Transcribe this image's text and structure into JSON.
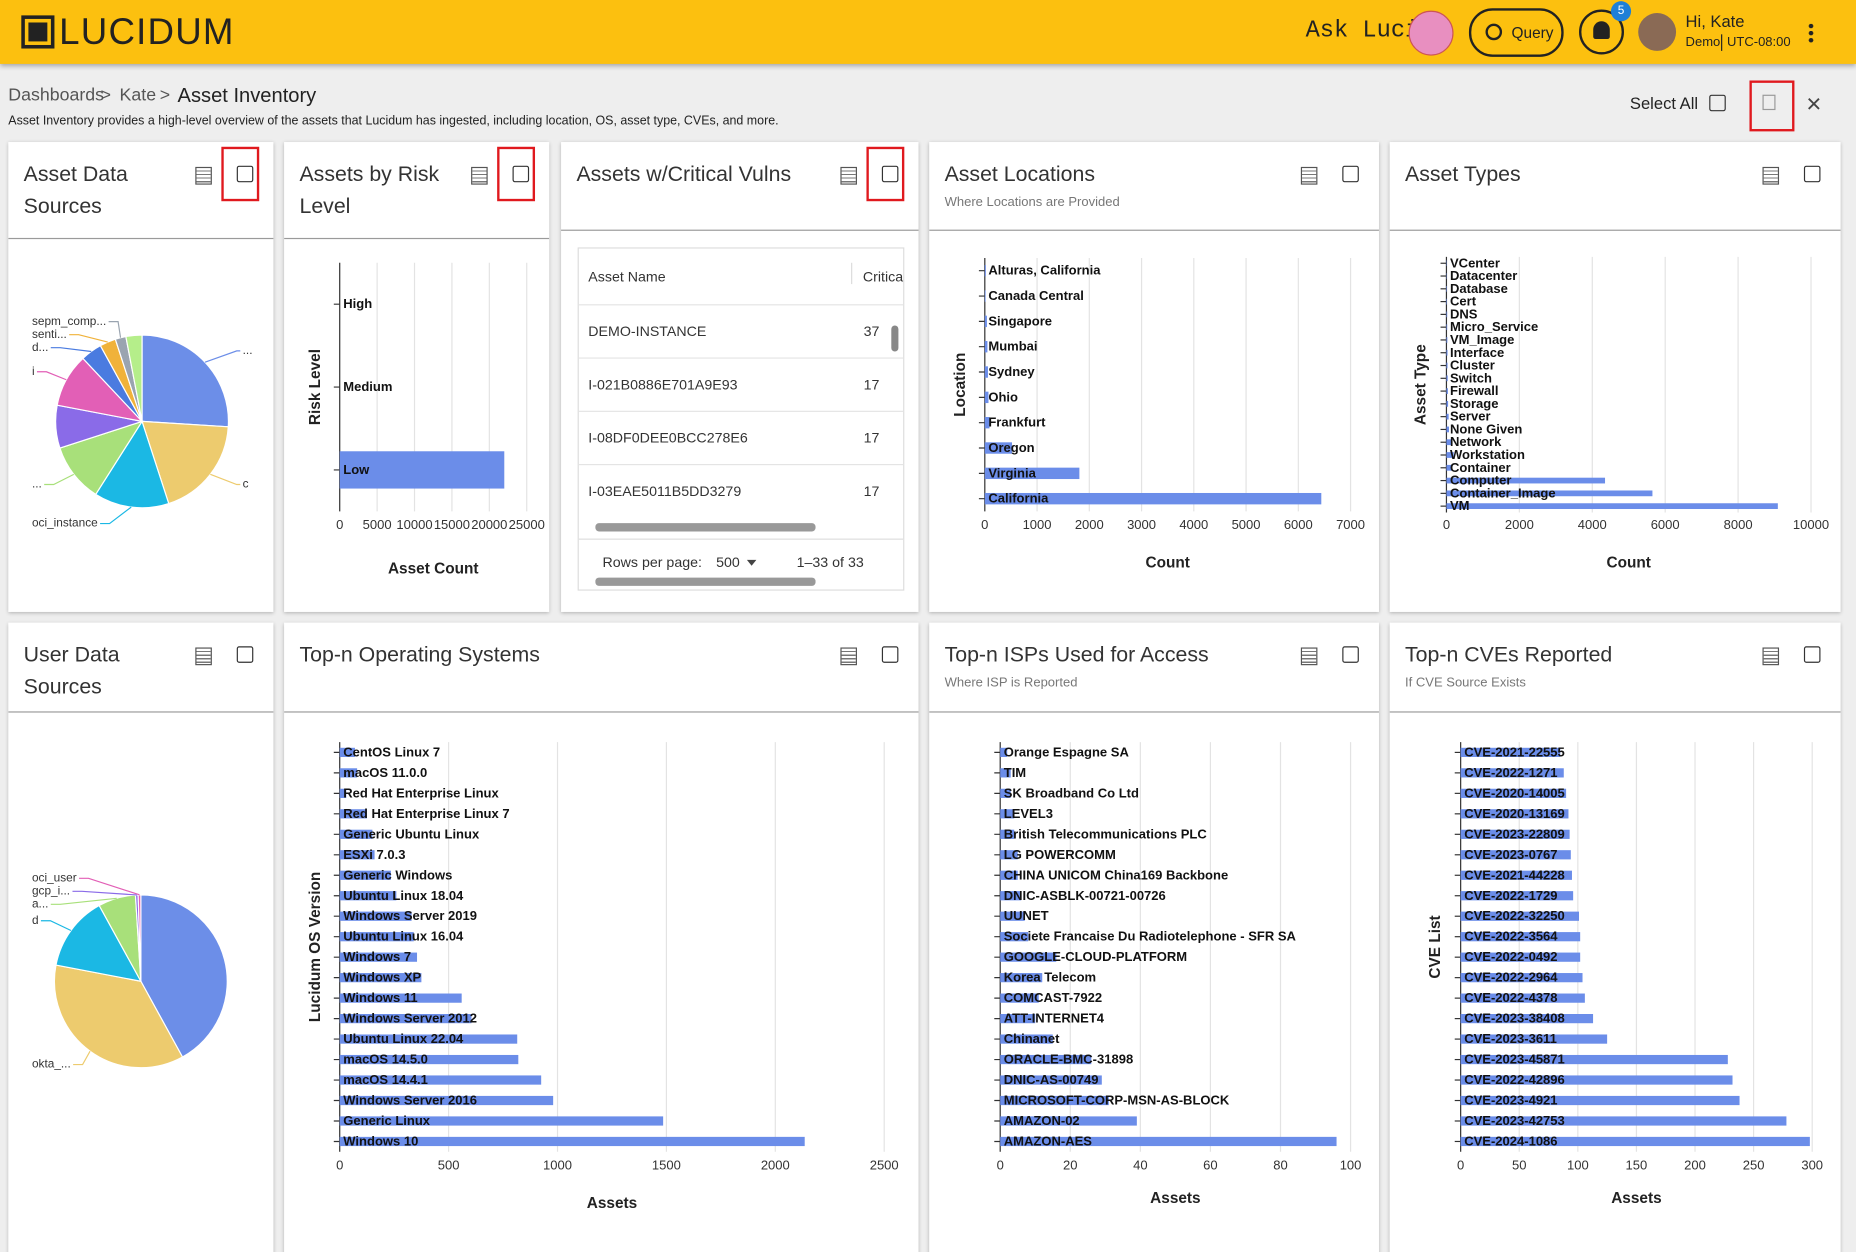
{
  "header": {
    "logo": "LUCIDUM",
    "ask": "Ask Luci:",
    "query": "Query",
    "notifications": 5,
    "greeting": "Hi, Kate",
    "org": "Demo",
    "timezone": "UTC-08:00"
  },
  "breadcrumb": {
    "items": [
      "Dashboards",
      "Kate",
      "Asset Inventory"
    ],
    "separator": ">"
  },
  "description": "Asset Inventory provides a high-level overview of the assets that Lucidum has ingested, including location, OS, asset type, CVEs, and more.",
  "select_all": "Select All",
  "table": {
    "title": "Assets w/Critical Vulns",
    "columns": [
      "Asset Name",
      "Critica"
    ],
    "rows": [
      [
        "DEMO-INSTANCE",
        37
      ],
      [
        "I-021B0886E701A9E93",
        17
      ],
      [
        "I-08DF0DEE0BCC278E6",
        17
      ],
      [
        "I-03EAE5011B5DD3279",
        17
      ]
    ],
    "rows_per_page_label": "Rows per page:",
    "rows_per_page": 500,
    "range": "1–33 of 33"
  },
  "chart_data": [
    {
      "type": "pie",
      "title": "Asset Data Sources",
      "categories": [
        "...",
        "c",
        "oci_instance",
        "...",
        null,
        "i",
        "d...",
        "senti...",
        "sepm_comp...",
        null
      ],
      "values": [
        26,
        19,
        14,
        11,
        8,
        10,
        4,
        3,
        2,
        3
      ],
      "colors": [
        "#6c8ee8",
        "#edcb6e",
        "#1bb8e4",
        "#a8e07a",
        "#8a6be8",
        "#e25fb6",
        "#4a7be0",
        "#f0b23a",
        "#9aa4b0",
        "#b5ee8a"
      ]
    },
    {
      "type": "bar",
      "title": "Assets by Risk Level",
      "xlabel": "Asset Count",
      "ylabel": "Risk Level",
      "categories": [
        "High",
        "Medium",
        "Low"
      ],
      "values": [
        0,
        0,
        22000
      ],
      "color": "#6b8de9",
      "xlim": [
        0,
        25000
      ],
      "xticks": [
        0,
        5000,
        10000,
        15000,
        20000,
        25000
      ],
      "grid": true
    },
    {
      "type": "bar",
      "title": "Asset Locations",
      "subtitle": "Where Locations are Provided",
      "xlabel": "Count",
      "ylabel": "Location",
      "categories": [
        "Alturas, California",
        "Canada Central",
        "Singapore",
        "Mumbai",
        "Sydney",
        "Ohio",
        "Frankfurt",
        "Oregon",
        "Virginia",
        "California"
      ],
      "values": [
        20,
        15,
        40,
        50,
        60,
        70,
        90,
        520,
        1810,
        6440
      ],
      "color": "#6b8de9",
      "xlim": [
        0,
        7000
      ],
      "xticks": [
        0,
        1000,
        2000,
        3000,
        4000,
        5000,
        6000,
        7000
      ],
      "grid": true
    },
    {
      "type": "bar",
      "title": "Asset Types",
      "xlabel": "Count",
      "ylabel": "Asset Type",
      "categories": [
        "VCenter",
        "Datacenter",
        "Database",
        "Cert",
        "DNS",
        "Micro_Service",
        "VM_Image",
        "Interface",
        "Cluster",
        "Switch",
        "Firewall",
        "Storage",
        "Server",
        "None Given",
        "Network",
        "Workstation",
        "Container",
        "Computer",
        "Container_Image",
        "VM"
      ],
      "values": [
        10,
        10,
        15,
        15,
        20,
        20,
        25,
        30,
        30,
        35,
        40,
        45,
        60,
        70,
        130,
        200,
        150,
        4350,
        5650,
        9090
      ],
      "color": "#6b8de9",
      "xlim": [
        0,
        10000
      ],
      "xticks": [
        0,
        2000,
        4000,
        6000,
        8000,
        10000
      ],
      "grid": true
    },
    {
      "type": "pie",
      "title": "User Data Sources",
      "categories": [
        null,
        "okta_...",
        "d",
        "a...",
        "gcp_i...",
        "oci_user"
      ],
      "values": [
        42,
        36,
        14,
        7,
        0.5,
        0.5
      ],
      "colors": [
        "#6c8ee8",
        "#edcb6e",
        "#1bb8e4",
        "#a8e07a",
        "#8a6be8",
        "#e25fb6"
      ]
    },
    {
      "type": "bar",
      "title": "Top-n Operating Systems",
      "xlabel": "Assets",
      "ylabel": "Lucidum OS Version",
      "categories": [
        "CentOS Linux 7",
        "macOS 11.0.0",
        "Red Hat Enterprise Linux",
        "Red Hat Enterprise Linux 7",
        "Generic Ubuntu Linux",
        "ESXi 7.0.3",
        "Generic Windows",
        "Ubuntu Linux 18.04",
        "Windows Server 2019",
        "Ubuntu Linux 16.04",
        "Windows 7",
        "Windows XP",
        "Windows 11",
        "Windows Server 2012",
        "Ubuntu Linux 22.04",
        "macOS 14.5.0",
        "macOS 14.4.1",
        "Windows Server 2016",
        "Generic Linux",
        "Windows 10"
      ],
      "values": [
        70,
        80,
        30,
        125,
        150,
        160,
        235,
        260,
        330,
        340,
        355,
        375,
        560,
        605,
        815,
        820,
        925,
        980,
        1485,
        2135
      ],
      "color": "#6b8de9",
      "xlim": [
        0,
        2500
      ],
      "xticks": [
        0,
        500,
        1000,
        1500,
        2000,
        2500
      ],
      "grid": true
    },
    {
      "type": "bar",
      "title": "Top-n ISPs Used for Access",
      "subtitle": "Where ISP is Reported",
      "xlabel": "Assets",
      "categories": [
        "Orange Espagne SA",
        "TIM",
        "SK Broadband Co Ltd",
        "LEVEL3",
        "British Telecommunications PLC",
        "LG POWERCOMM",
        "CHINA UNICOM China169 Backbone",
        "DNIC-ASBLK-00721-00726",
        "UUNET",
        "Societe Francaise Du Radiotelephone - SFR SA",
        "GOOGLE-CLOUD-PLATFORM",
        "Korea Telecom",
        "COMCAST-7922",
        "ATT-INTERNET4",
        "Chinanet",
        "ORACLE-BMC-31898",
        "DNIC-AS-00749",
        "MICROSOFT-CORP-MSN-AS-BLOCK",
        "AMAZON-02",
        "AMAZON-AES"
      ],
      "values": [
        2,
        3,
        3,
        4,
        4,
        5,
        5,
        6,
        7,
        8,
        16,
        12,
        11,
        10,
        15,
        26,
        29,
        31,
        39,
        96
      ],
      "color": "#6b8de9",
      "xlim": [
        0,
        100
      ],
      "xticks": [
        0,
        20,
        40,
        60,
        80,
        100
      ],
      "grid": true
    },
    {
      "type": "bar",
      "title": "Top-n CVEs Reported",
      "subtitle": "If CVE Source Exists",
      "xlabel": "Assets",
      "ylabel": "CVE List",
      "categories": [
        "CVE-2021-22555",
        "CVE-2022-1271",
        "CVE-2020-14005",
        "CVE-2020-13169",
        "CVE-2023-22809",
        "CVE-2023-0767",
        "CVE-2021-44228",
        "CVE-2022-1729",
        "CVE-2022-32250",
        "CVE-2022-3564",
        "CVE-2022-0492",
        "CVE-2022-2964",
        "CVE-2022-4378",
        "CVE-2023-38408",
        "CVE-2023-3611",
        "CVE-2023-45871",
        "CVE-2022-42896",
        "CVE-2023-4921",
        "CVE-2023-42753",
        "CVE-2024-1086"
      ],
      "values": [
        85,
        88,
        90,
        92,
        93,
        94,
        95,
        96,
        101,
        102,
        102,
        104,
        106,
        113,
        125,
        228,
        232,
        238,
        278,
        298
      ],
      "color": "#6b8de9",
      "xlim": [
        0,
        300
      ],
      "xticks": [
        0,
        50,
        100,
        150,
        200,
        250,
        300
      ],
      "grid": true
    }
  ]
}
